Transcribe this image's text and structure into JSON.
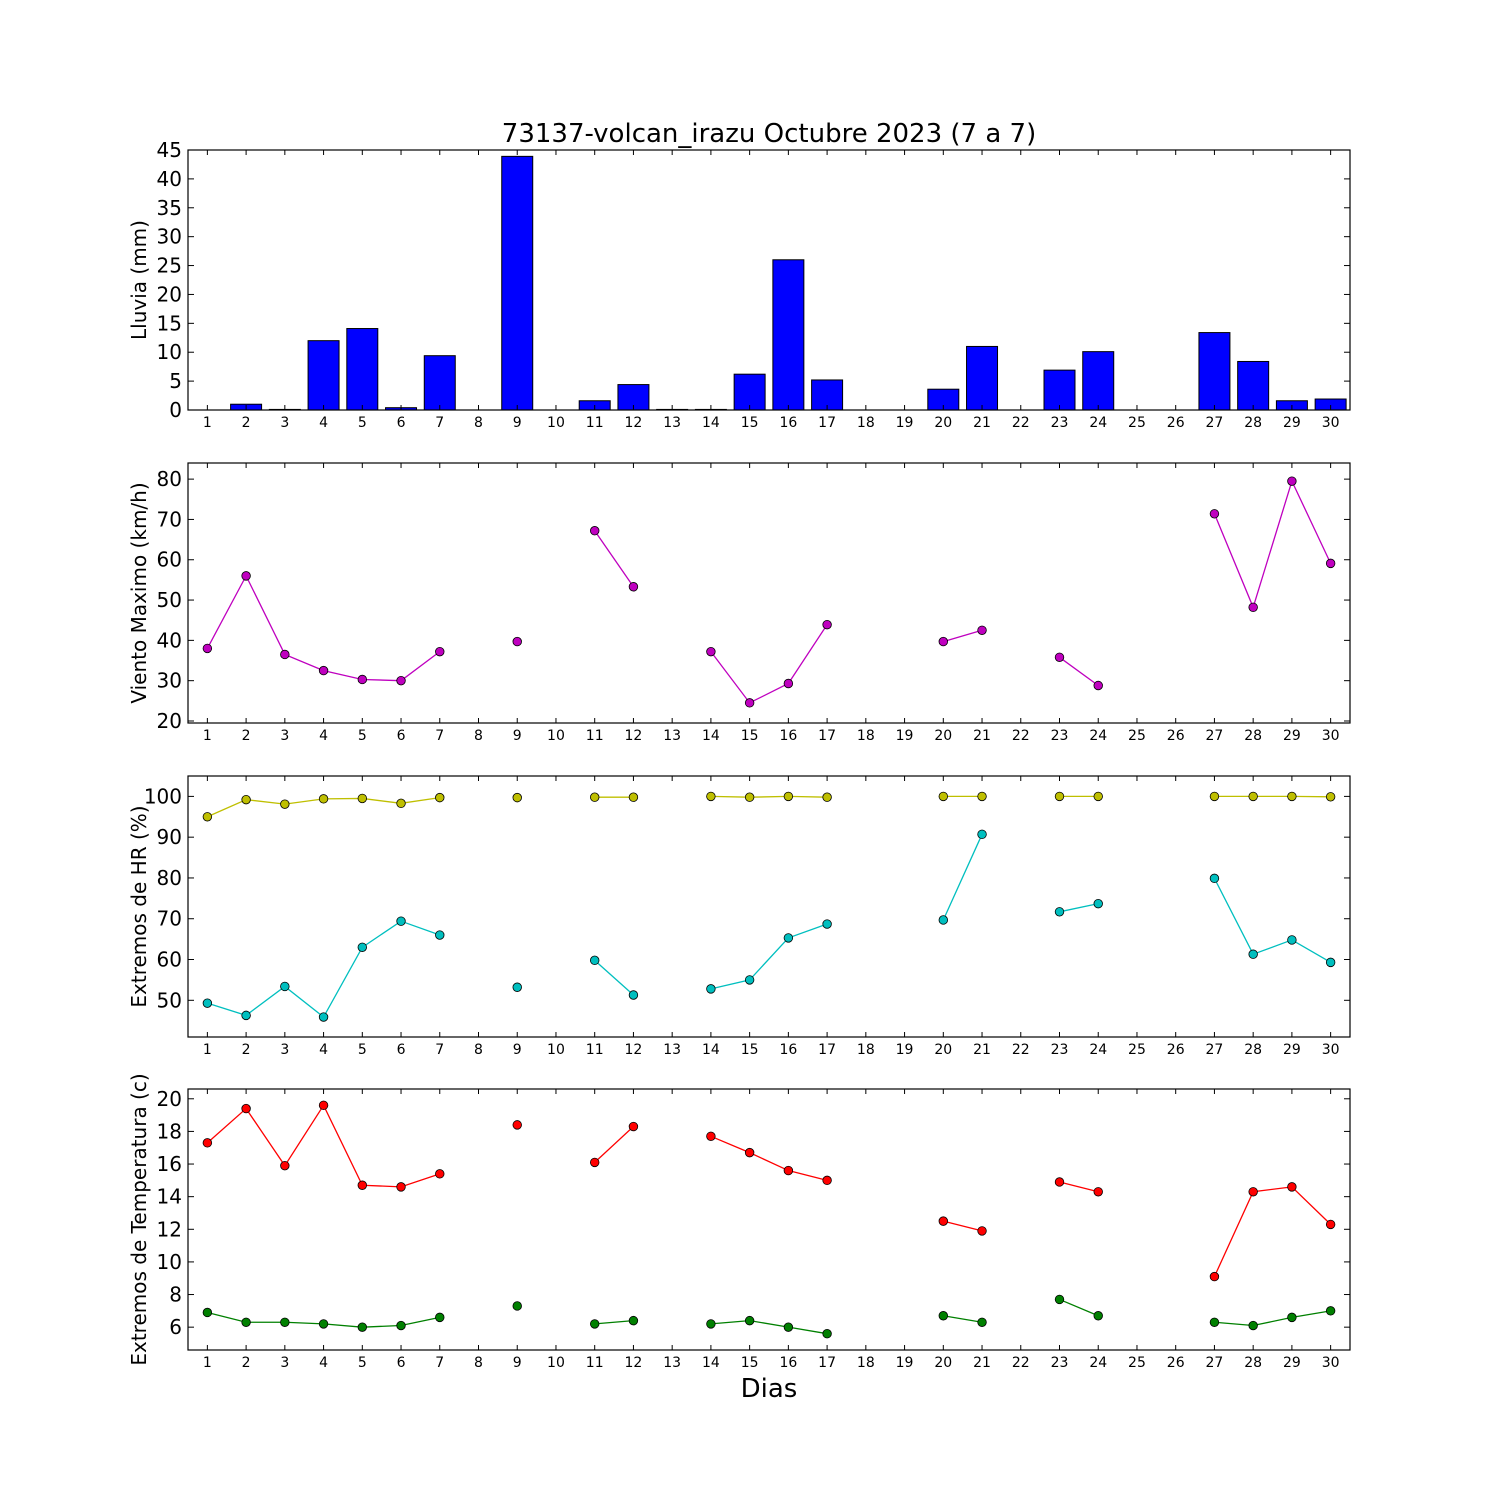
{
  "chart_data": {
    "title": "73137-volcan_irazu Octubre 2023  (7 a 7)",
    "xlabel": "Dias",
    "x_ticks": [
      1,
      2,
      3,
      4,
      5,
      6,
      7,
      8,
      9,
      10,
      11,
      12,
      13,
      14,
      15,
      16,
      17,
      18,
      19,
      20,
      21,
      22,
      23,
      24,
      25,
      26,
      27,
      28,
      29,
      30
    ],
    "xlim": [
      0.5,
      30.5
    ],
    "panels": [
      {
        "id": "lluvia",
        "type": "bar",
        "ylabel": "Lluvia (mm)",
        "ylim": [
          0,
          45
        ],
        "yticks": [
          0,
          5,
          10,
          15,
          20,
          25,
          30,
          35,
          40,
          45
        ],
        "series": [
          {
            "color": "#0000ff",
            "x": [
              1,
              2,
              3,
              4,
              5,
              6,
              7,
              8,
              9,
              10,
              11,
              12,
              13,
              14,
              15,
              16,
              17,
              18,
              19,
              20,
              21,
              22,
              23,
              24,
              25,
              26,
              27,
              28,
              29,
              30
            ],
            "values": [
              0,
              1.0,
              0.1,
              12.0,
              14.1,
              0.4,
              9.4,
              0,
              43.9,
              0,
              1.6,
              4.4,
              0.1,
              0.1,
              6.2,
              26.0,
              5.2,
              0,
              0,
              3.6,
              11.0,
              0,
              6.9,
              10.1,
              0,
              0,
              13.4,
              8.4,
              1.6,
              1.9
            ]
          }
        ]
      },
      {
        "id": "viento",
        "type": "line",
        "ylabel": "Viento Maximo (km/h)",
        "ylim": [
          19.5,
          84
        ],
        "yticks": [
          20,
          30,
          40,
          50,
          60,
          70,
          80
        ],
        "series": [
          {
            "color": "#bf00bf",
            "x": [
              1,
              2,
              3,
              4,
              5,
              6,
              7,
              8,
              9,
              10,
              11,
              12,
              13,
              14,
              15,
              16,
              17,
              18,
              19,
              20,
              21,
              22,
              23,
              24,
              25,
              26,
              27,
              28,
              29,
              30
            ],
            "values": [
              38.0,
              56.0,
              36.5,
              32.5,
              30.3,
              30.0,
              37.2,
              null,
              39.7,
              null,
              67.2,
              53.3,
              null,
              37.2,
              24.5,
              29.3,
              43.9,
              null,
              null,
              39.7,
              42.5,
              null,
              35.8,
              28.8,
              null,
              null,
              71.4,
              48.2,
              79.5,
              59.1
            ]
          }
        ]
      },
      {
        "id": "humedad",
        "type": "line",
        "ylabel": "Extremos de HR (%)",
        "ylim": [
          41,
          105
        ],
        "yticks": [
          50,
          60,
          70,
          80,
          90,
          100
        ],
        "series": [
          {
            "color": "#bfbf00",
            "x": [
              1,
              2,
              3,
              4,
              5,
              6,
              7,
              8,
              9,
              10,
              11,
              12,
              13,
              14,
              15,
              16,
              17,
              18,
              19,
              20,
              21,
              22,
              23,
              24,
              25,
              26,
              27,
              28,
              29,
              30
            ],
            "values": [
              95.0,
              99.2,
              98.1,
              99.4,
              99.5,
              98.3,
              99.7,
              null,
              99.7,
              null,
              99.8,
              99.8,
              null,
              100.0,
              99.8,
              100.0,
              99.8,
              null,
              null,
              100.0,
              100.0,
              null,
              100.0,
              100.0,
              null,
              null,
              100.0,
              100.0,
              100.0,
              99.9
            ]
          },
          {
            "color": "#00bfbf",
            "x": [
              1,
              2,
              3,
              4,
              5,
              6,
              7,
              8,
              9,
              10,
              11,
              12,
              13,
              14,
              15,
              16,
              17,
              18,
              19,
              20,
              21,
              22,
              23,
              24,
              25,
              26,
              27,
              28,
              29,
              30
            ],
            "values": [
              49.3,
              46.3,
              53.4,
              45.9,
              63.0,
              69.4,
              66.0,
              null,
              53.2,
              null,
              59.8,
              51.3,
              null,
              52.8,
              55.0,
              65.3,
              68.7,
              null,
              null,
              69.7,
              90.7,
              null,
              71.7,
              73.7,
              null,
              null,
              79.9,
              61.3,
              64.8,
              59.3
            ]
          }
        ]
      },
      {
        "id": "temperatura",
        "type": "line",
        "ylabel": "Extremos de Temperatura (c)",
        "ylim": [
          4.6,
          20.6
        ],
        "yticks": [
          6,
          8,
          10,
          12,
          14,
          16,
          18,
          20
        ],
        "series": [
          {
            "color": "#ff0000",
            "x": [
              1,
              2,
              3,
              4,
              5,
              6,
              7,
              8,
              9,
              10,
              11,
              12,
              13,
              14,
              15,
              16,
              17,
              18,
              19,
              20,
              21,
              22,
              23,
              24,
              25,
              26,
              27,
              28,
              29,
              30
            ],
            "values": [
              17.3,
              19.4,
              15.9,
              19.6,
              14.7,
              14.6,
              15.4,
              null,
              18.4,
              null,
              16.1,
              18.3,
              null,
              17.7,
              16.7,
              15.6,
              15.0,
              null,
              null,
              12.5,
              11.9,
              null,
              14.9,
              14.3,
              null,
              null,
              9.1,
              14.3,
              14.6,
              12.3
            ]
          },
          {
            "color": "#008000",
            "x": [
              1,
              2,
              3,
              4,
              5,
              6,
              7,
              8,
              9,
              10,
              11,
              12,
              13,
              14,
              15,
              16,
              17,
              18,
              19,
              20,
              21,
              22,
              23,
              24,
              25,
              26,
              27,
              28,
              29,
              30
            ],
            "values": [
              6.9,
              6.3,
              6.3,
              6.2,
              6.0,
              6.1,
              6.6,
              null,
              7.3,
              null,
              6.2,
              6.4,
              null,
              6.2,
              6.4,
              6.0,
              5.6,
              null,
              null,
              6.7,
              6.3,
              null,
              7.7,
              6.7,
              null,
              null,
              6.3,
              6.1,
              6.6,
              7.0
            ]
          }
        ]
      }
    ]
  }
}
